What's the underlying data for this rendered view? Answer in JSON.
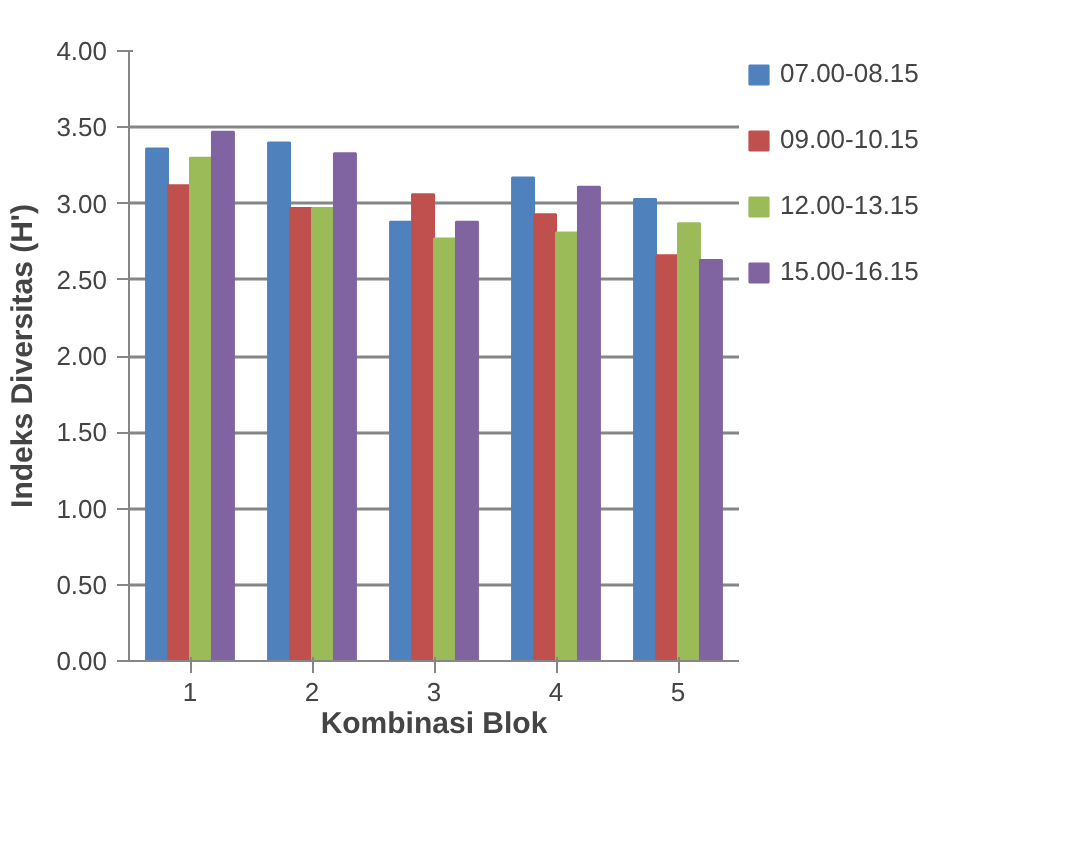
{
  "chart_data": {
    "type": "bar",
    "xlabel": "Kombinasi Blok",
    "ylabel": "Indeks Diversitas (H')",
    "categories": [
      "1",
      "2",
      "3",
      "4",
      "5"
    ],
    "series": [
      {
        "name": "07.00-08.15",
        "color": "#4f81bd",
        "values": [
          3.36,
          3.4,
          2.88,
          3.17,
          3.03
        ]
      },
      {
        "name": "09.00-10.15",
        "color": "#c0504d",
        "values": [
          3.12,
          2.97,
          3.06,
          2.93,
          2.66
        ]
      },
      {
        "name": "12.00-13.15",
        "color": "#9bbb59",
        "values": [
          3.3,
          2.97,
          2.77,
          2.81,
          2.87
        ]
      },
      {
        "name": "15.00-16.15",
        "color": "#8064a2",
        "values": [
          3.47,
          3.33,
          2.88,
          3.11,
          2.63
        ]
      }
    ],
    "ylim": [
      0,
      4
    ],
    "yticks": [
      {
        "value": 0,
        "label": "0.00"
      },
      {
        "value": 0.5,
        "label": "0.50"
      },
      {
        "value": 1,
        "label": "1.00"
      },
      {
        "value": 1.5,
        "label": "1.50"
      },
      {
        "value": 2,
        "label": "2.00"
      },
      {
        "value": 2.5,
        "label": "2.50"
      },
      {
        "value": 3,
        "label": "3.00"
      },
      {
        "value": 3.5,
        "label": "3.50"
      },
      {
        "value": 4,
        "label": "4.00"
      }
    ],
    "grid": "y",
    "legend": "right"
  }
}
